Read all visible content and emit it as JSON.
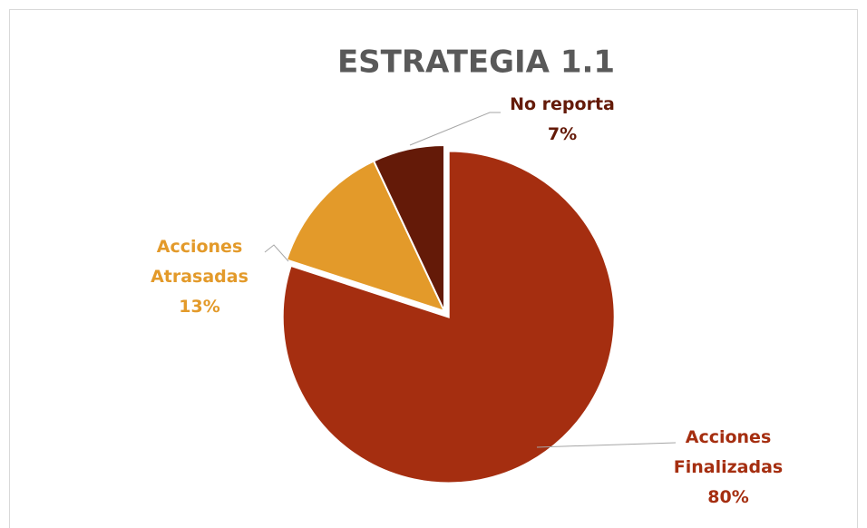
{
  "chart_data": {
    "type": "pie",
    "title": "ESTRATEGIA 1.1",
    "categories": [
      "Acciones Finalizadas",
      "Acciones Atrasadas",
      "No reporta"
    ],
    "values": [
      80,
      13,
      7
    ],
    "value_labels": [
      "80%",
      "13%",
      "7%"
    ],
    "colors": [
      "#a52e10",
      "#e39a2a",
      "#641a08"
    ]
  }
}
